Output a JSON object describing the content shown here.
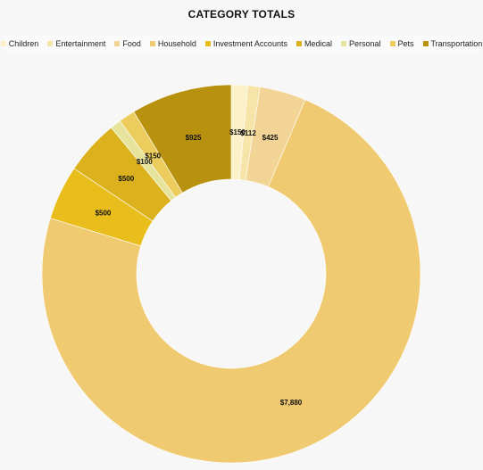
{
  "chart_data": {
    "type": "pie",
    "title": "CATEGORY TOTALS",
    "legend_position": "top",
    "categories": [
      "Children",
      "Entertainment",
      "Food",
      "Household",
      "Investment Accounts",
      "Medical",
      "Personal",
      "Pets",
      "Transportation"
    ],
    "values": [
      150,
      112,
      425,
      7880,
      500,
      500,
      100,
      150,
      925
    ],
    "data_labels": [
      "$150",
      "$112",
      "$425",
      "$7,880",
      "$500",
      "$500",
      "$100",
      "$150",
      "$925"
    ],
    "colors": [
      "#fbf0c8",
      "#f6e4a8",
      "#f2d496",
      "#f0ca70",
      "#e8bd1c",
      "#dbb21e",
      "#e6e49c",
      "#eccc5c",
      "#b8920e"
    ]
  }
}
